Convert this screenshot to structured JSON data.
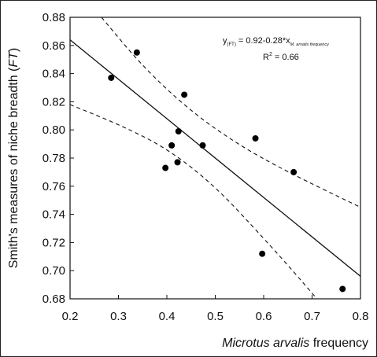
{
  "chart_data": {
    "type": "scatter",
    "title": "",
    "xlabel_italic": "Microtus arvalis",
    "xlabel_rest": " frequency",
    "ylabel_main": "Smith's measures of niche breadth (",
    "ylabel_ital": "FT",
    "ylabel_close": ")",
    "xlim": [
      0.2,
      0.8
    ],
    "ylim": [
      0.68,
      0.88
    ],
    "x_ticks": [
      0.2,
      0.3,
      0.4,
      0.5,
      0.6,
      0.7,
      0.8
    ],
    "x_tick_labels": [
      "0.2",
      "0.3",
      "0.4",
      "0.5",
      "0.6",
      "0.7",
      "0.8"
    ],
    "y_ticks": [
      0.68,
      0.7,
      0.72,
      0.74,
      0.76,
      0.78,
      0.8,
      0.82,
      0.84,
      0.86,
      0.88
    ],
    "y_tick_labels": [
      "0.68",
      "0.70",
      "0.72",
      "0.74",
      "0.76",
      "0.78",
      "0.80",
      "0.82",
      "0.84",
      "0.86",
      "0.88"
    ],
    "grid": false,
    "points": [
      {
        "x": 0.285,
        "y": 0.837
      },
      {
        "x": 0.338,
        "y": 0.855
      },
      {
        "x": 0.397,
        "y": 0.773
      },
      {
        "x": 0.41,
        "y": 0.789
      },
      {
        "x": 0.422,
        "y": 0.777
      },
      {
        "x": 0.424,
        "y": 0.799
      },
      {
        "x": 0.436,
        "y": 0.825
      },
      {
        "x": 0.474,
        "y": 0.789
      },
      {
        "x": 0.583,
        "y": 0.794
      },
      {
        "x": 0.597,
        "y": 0.712
      },
      {
        "x": 0.662,
        "y": 0.77
      },
      {
        "x": 0.763,
        "y": 0.687
      }
    ],
    "regression": {
      "intercept": 0.92,
      "slope": -0.28
    },
    "ci_upper": [
      {
        "x": 0.265,
        "y": 0.88
      },
      {
        "x": 0.35,
        "y": 0.845
      },
      {
        "x": 0.45,
        "y": 0.813
      },
      {
        "x": 0.55,
        "y": 0.789
      },
      {
        "x": 0.65,
        "y": 0.77
      },
      {
        "x": 0.8,
        "y": 0.745
      }
    ],
    "ci_lower": [
      {
        "x": 0.2,
        "y": 0.818
      },
      {
        "x": 0.3,
        "y": 0.804
      },
      {
        "x": 0.4,
        "y": 0.787
      },
      {
        "x": 0.5,
        "y": 0.76
      },
      {
        "x": 0.6,
        "y": 0.723
      },
      {
        "x": 0.66,
        "y": 0.7
      },
      {
        "x": 0.71,
        "y": 0.68
      }
    ],
    "equation": {
      "lhs": "y",
      "lhs_sub": "(FT)",
      "rhs": " = 0.92-0.28*x",
      "rhs_sub": "M. arvalis frequency",
      "r2_label": "R",
      "r2_sup": "2",
      "r2_value": " = 0.66"
    }
  }
}
